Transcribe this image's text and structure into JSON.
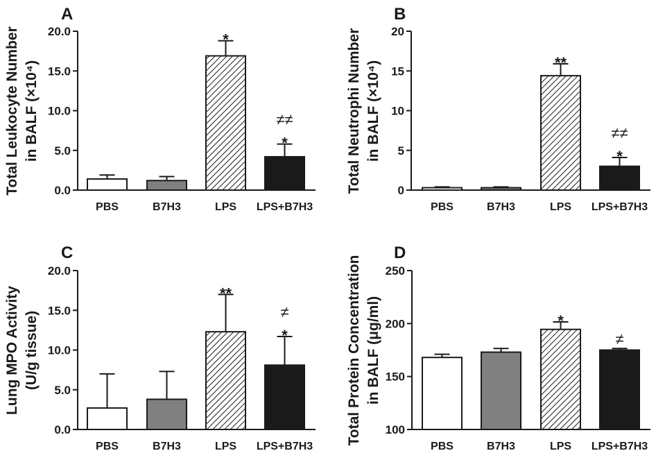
{
  "chart_data": [
    {
      "type": "bar",
      "panel": "A",
      "ylabel": [
        "Total Leukocyte Number",
        "in BALF (×10⁴)"
      ],
      "ylim": [
        0,
        20
      ],
      "yticks": [
        "0.0",
        "5.0",
        "10.0",
        "15.0",
        "20.0"
      ],
      "ytick_values": [
        0,
        5,
        10,
        15,
        20
      ],
      "categories": [
        "PBS",
        "B7H3",
        "LPS",
        "LPS+B7H3"
      ],
      "values": [
        1.4,
        1.2,
        16.9,
        4.2
      ],
      "error_upper": [
        1.9,
        1.7,
        18.8,
        5.8
      ],
      "annotations": [
        [
          "",
          ""
        ],
        [
          "",
          ""
        ],
        [
          "*",
          ""
        ],
        [
          "*",
          "≠≠"
        ]
      ]
    },
    {
      "type": "bar",
      "panel": "B",
      "ylabel": [
        "Total Neutrophi Number",
        "in BALF (×10⁴)"
      ],
      "ylim": [
        0,
        20
      ],
      "yticks": [
        "0",
        "5",
        "10",
        "15",
        "20"
      ],
      "ytick_values": [
        0,
        5,
        10,
        15,
        20
      ],
      "categories": [
        "PBS",
        "B7H3",
        "LPS",
        "LPS+B7H3"
      ],
      "values": [
        0.3,
        0.3,
        14.4,
        3.0
      ],
      "error_upper": [
        0.4,
        0.4,
        15.9,
        4.1
      ],
      "annotations": [
        [
          "",
          ""
        ],
        [
          "",
          ""
        ],
        [
          "**",
          ""
        ],
        [
          "*",
          "≠≠"
        ]
      ]
    },
    {
      "type": "bar",
      "panel": "C",
      "ylabel": [
        "Lung MPO Activity",
        "(U/g tissue)"
      ],
      "ylim": [
        0,
        20
      ],
      "yticks": [
        "0.0",
        "5.0",
        "10.0",
        "15.0",
        "20.0"
      ],
      "ytick_values": [
        0,
        5,
        10,
        15,
        20
      ],
      "categories": [
        "PBS",
        "B7H3",
        "LPS",
        "LPS+B7H3"
      ],
      "values": [
        2.7,
        3.8,
        12.3,
        8.1
      ],
      "error_upper": [
        7.0,
        7.3,
        17.0,
        11.7
      ],
      "annotations": [
        [
          "",
          ""
        ],
        [
          "",
          ""
        ],
        [
          "**",
          ""
        ],
        [
          "*",
          "≠"
        ]
      ]
    },
    {
      "type": "bar",
      "panel": "D",
      "ylabel": [
        "Total Protein Concentration",
        "in BALF (μg/ml)"
      ],
      "ylim": [
        100,
        250
      ],
      "yticks": [
        "100",
        "150",
        "200",
        "250"
      ],
      "ytick_values": [
        100,
        150,
        200,
        250
      ],
      "categories": [
        "PBS",
        "B7H3",
        "LPS",
        "LPS+B7H3"
      ],
      "values": [
        168,
        173,
        194.5,
        175
      ],
      "error_upper": [
        171,
        176.5,
        201.5,
        176.5
      ],
      "annotations": [
        [
          "",
          ""
        ],
        [
          "",
          ""
        ],
        [
          "*",
          ""
        ],
        [
          "",
          "≠"
        ]
      ]
    }
  ],
  "bar_fills": [
    "#ffffff",
    "#808080",
    "hatch",
    "#1a1a1a"
  ],
  "colors": {
    "ink": "#1a1a1a",
    "gray": "#808080"
  }
}
